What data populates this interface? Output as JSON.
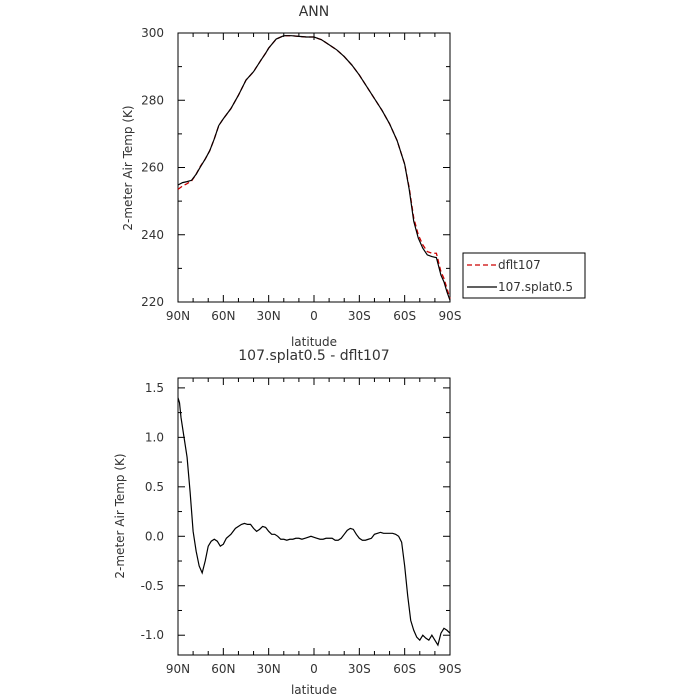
{
  "chart_data": [
    {
      "type": "line",
      "title": "ANN",
      "xlabel": "latitude",
      "ylabel": "2-meter Air Temp (K)",
      "xlim": [
        90,
        -90
      ],
      "ylim": [
        220,
        300
      ],
      "x_ticks": [
        90,
        60,
        30,
        0,
        -30,
        -60,
        -90
      ],
      "x_tick_labels": [
        "90N",
        "60N",
        "30N",
        "0",
        "30S",
        "60S",
        "90S"
      ],
      "y_ticks": [
        220,
        240,
        260,
        280,
        300
      ],
      "y_tick_labels": [
        "220",
        "240",
        "260",
        "280",
        "300"
      ],
      "legend_position": "outside-bottom-right",
      "series": [
        {
          "name": "dflt107",
          "color": "#cc0000",
          "dash": "dashed",
          "x": [
            90,
            87,
            84,
            81,
            78,
            75,
            72,
            69,
            66,
            63,
            60,
            55,
            50,
            45,
            40,
            35,
            32,
            30,
            25,
            20,
            15,
            10,
            5,
            2,
            0,
            -5,
            -10,
            -15,
            -20,
            -25,
            -30,
            -35,
            -40,
            -45,
            -50,
            -55,
            -60,
            -63,
            -66,
            -69,
            -72,
            -75,
            -78,
            -81,
            -84,
            -86,
            -88,
            -90
          ],
          "y": [
            253.5,
            254.5,
            255.2,
            256,
            258,
            260.5,
            262.5,
            265,
            268.5,
            272.5,
            274.5,
            277.5,
            281.5,
            286,
            288.5,
            292,
            294,
            295.5,
            298.2,
            299.2,
            299.2,
            299,
            298.8,
            298.8,
            298.8,
            298,
            296.5,
            295,
            293,
            290.5,
            287.5,
            284,
            280.5,
            277,
            273,
            268,
            261,
            254,
            245,
            240,
            237,
            235,
            234.5,
            234.5,
            229,
            227,
            224,
            221
          ]
        },
        {
          "name": "107.splat0.5",
          "color": "#000000",
          "dash": "solid",
          "x": [
            90,
            87,
            84,
            81,
            78,
            75,
            72,
            69,
            66,
            63,
            60,
            55,
            50,
            45,
            40,
            35,
            32,
            30,
            25,
            20,
            15,
            10,
            5,
            2,
            0,
            -5,
            -10,
            -15,
            -20,
            -25,
            -30,
            -35,
            -40,
            -45,
            -50,
            -55,
            -60,
            -63,
            -66,
            -69,
            -72,
            -75,
            -78,
            -81,
            -84,
            -86,
            -88,
            -90
          ],
          "y": [
            254.8,
            255.5,
            255.8,
            256.2,
            258,
            260.3,
            262.5,
            265,
            268.5,
            272.5,
            274.5,
            277.5,
            281.5,
            286,
            288.5,
            292,
            294,
            295.5,
            298.2,
            299.2,
            299.2,
            299,
            298.8,
            298.8,
            298.8,
            298,
            296.5,
            295,
            293,
            290.5,
            287.5,
            284,
            280.5,
            277,
            273,
            268,
            261,
            253.5,
            244,
            239,
            236,
            234,
            233.5,
            233.2,
            228,
            226,
            223,
            220.5
          ]
        }
      ]
    },
    {
      "type": "line",
      "title": "107.splat0.5 - dflt107",
      "xlabel": "latitude",
      "ylabel": "2-meter Air Temp (K)",
      "xlim": [
        90,
        -90
      ],
      "ylim": [
        -1.2,
        1.6
      ],
      "x_ticks": [
        90,
        60,
        30,
        0,
        -30,
        -60,
        -90
      ],
      "x_tick_labels": [
        "90N",
        "60N",
        "30N",
        "0",
        "30S",
        "60S",
        "90S"
      ],
      "y_ticks": [
        -1.0,
        -0.5,
        0.0,
        0.5,
        1.0,
        1.5
      ],
      "y_tick_labels": [
        "-1.0",
        "-0.5",
        "0.0",
        "0.5",
        "1.0",
        "1.5"
      ],
      "series": [
        {
          "color": "#000000",
          "dash": "solid",
          "x": [
            90,
            89,
            88,
            86,
            84,
            82,
            80,
            78,
            76,
            74,
            72,
            70,
            68,
            66,
            64,
            62,
            60,
            58,
            55,
            52,
            50,
            48,
            46,
            44,
            42,
            40,
            38,
            36,
            34,
            32,
            30,
            28,
            26,
            24,
            22,
            20,
            18,
            16,
            14,
            12,
            10,
            8,
            6,
            4,
            2,
            0,
            -2,
            -4,
            -6,
            -8,
            -10,
            -12,
            -14,
            -16,
            -18,
            -20,
            -22,
            -24,
            -26,
            -28,
            -30,
            -32,
            -34,
            -36,
            -38,
            -40,
            -42,
            -44,
            -46,
            -48,
            -50,
            -52,
            -54,
            -56,
            -58,
            -60,
            -62,
            -64,
            -66,
            -68,
            -70,
            -72,
            -74,
            -76,
            -78,
            -80,
            -82,
            -84,
            -86,
            -88,
            -90
          ],
          "y": [
            1.4,
            1.35,
            1.2,
            1.0,
            0.8,
            0.45,
            0.05,
            -0.15,
            -0.3,
            -0.37,
            -0.25,
            -0.1,
            -0.05,
            -0.03,
            -0.05,
            -0.1,
            -0.08,
            -0.02,
            0.02,
            0.08,
            0.1,
            0.12,
            0.13,
            0.12,
            0.12,
            0.08,
            0.05,
            0.07,
            0.1,
            0.09,
            0.05,
            0.02,
            0.02,
            0.0,
            -0.03,
            -0.03,
            -0.04,
            -0.03,
            -0.03,
            -0.02,
            -0.02,
            -0.03,
            -0.02,
            -0.01,
            0.0,
            -0.01,
            -0.02,
            -0.03,
            -0.03,
            -0.02,
            -0.02,
            -0.02,
            -0.04,
            -0.04,
            -0.02,
            0.02,
            0.06,
            0.08,
            0.07,
            0.02,
            -0.02,
            -0.04,
            -0.04,
            -0.03,
            -0.02,
            0.02,
            0.03,
            0.04,
            0.03,
            0.03,
            0.03,
            0.03,
            0.02,
            0.0,
            -0.06,
            -0.3,
            -0.6,
            -0.85,
            -0.95,
            -1.02,
            -1.05,
            -1.0,
            -1.03,
            -1.05,
            -1.0,
            -1.05,
            -1.1,
            -0.98,
            -0.93,
            -0.95,
            -0.98
          ]
        }
      ]
    }
  ]
}
